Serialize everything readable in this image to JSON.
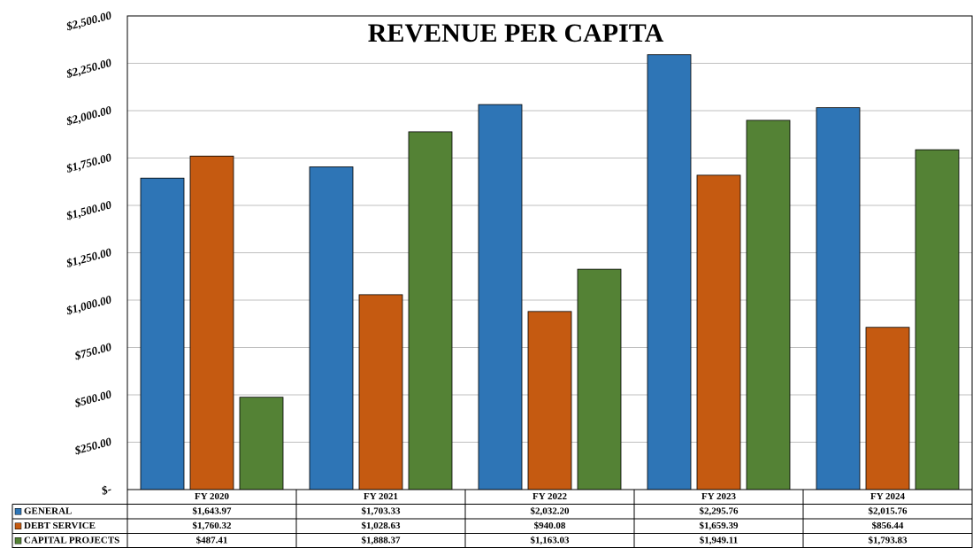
{
  "chart_data": {
    "type": "bar",
    "title": "REVENUE PER CAPITA",
    "categories": [
      "FY 2020",
      "FY 2021",
      "FY 2022",
      "FY 2023",
      "FY 2024"
    ],
    "series": [
      {
        "name": "GENERAL",
        "color": "#2e75b6",
        "values": [
          1643.97,
          1703.33,
          2032.2,
          2295.76,
          2015.76
        ],
        "value_labels": [
          "$1,643.97",
          "$1,703.33",
          "$2,032.20",
          "$2,295.76",
          "$2,015.76"
        ]
      },
      {
        "name": "DEBT SERVICE",
        "color": "#c55a11",
        "values": [
          1760.32,
          1028.63,
          940.08,
          1659.39,
          856.44
        ],
        "value_labels": [
          "$1,760.32",
          "$1,028.63",
          "$940.08",
          "$1,659.39",
          "$856.44"
        ]
      },
      {
        "name": "CAPITAL PROJECTS",
        "color": "#548235",
        "values": [
          487.41,
          1888.37,
          1163.03,
          1949.11,
          1793.83
        ],
        "value_labels": [
          "$487.41",
          "$1,888.37",
          "$1,163.03",
          "$1,949.11",
          "$1,793.83"
        ]
      }
    ],
    "ylim": [
      0,
      2500
    ],
    "yticks": [
      {
        "value": 0,
        "label": "$-"
      },
      {
        "value": 250,
        "label": "$250.00"
      },
      {
        "value": 500,
        "label": "$500.00"
      },
      {
        "value": 750,
        "label": "$750.00"
      },
      {
        "value": 1000,
        "label": "$1,000.00"
      },
      {
        "value": 1250,
        "label": "$1,250.00"
      },
      {
        "value": 1500,
        "label": "$1,500.00"
      },
      {
        "value": 1750,
        "label": "$1,750.00"
      },
      {
        "value": 2000,
        "label": "$2,000.00"
      },
      {
        "value": 2250,
        "label": "$2,250.00"
      },
      {
        "value": 2500,
        "label": "$2,500.00"
      }
    ],
    "grid": true
  }
}
